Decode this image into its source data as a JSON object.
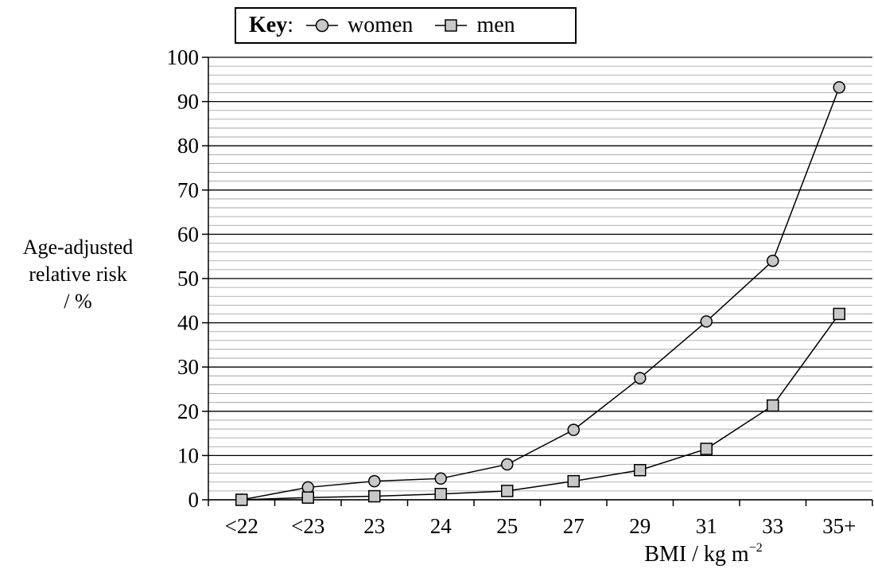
{
  "chart_data": {
    "type": "line",
    "categories": [
      "<22",
      "<23",
      "23",
      "24",
      "25",
      "27",
      "29",
      "31",
      "33",
      "35+"
    ],
    "series": [
      {
        "name": "women",
        "marker": "circle",
        "values": [
          0,
          2.8,
          4.2,
          4.8,
          8.0,
          15.8,
          27.5,
          40.3,
          54.0,
          93.2
        ]
      },
      {
        "name": "men",
        "marker": "square",
        "values": [
          0,
          0.5,
          0.8,
          1.3,
          2.0,
          4.2,
          6.7,
          11.5,
          21.3,
          42.0
        ]
      }
    ],
    "ylabel_lines": [
      "Age-adjusted",
      "relative risk",
      "/ %"
    ],
    "xlabel": "BMI / kg m",
    "xlabel_exponent": "−2",
    "ylim": [
      0,
      100
    ],
    "yticks": [
      0,
      10,
      20,
      30,
      40,
      50,
      60,
      70,
      80,
      90,
      100
    ],
    "minor_grid_step": 2,
    "grid": true,
    "legend": {
      "title": "Key",
      "separator": ":",
      "position": "top"
    },
    "colors": {
      "marker_fill": "#c8c8c8",
      "line": "#000000",
      "minor_grid": "#9a9a9a"
    }
  }
}
